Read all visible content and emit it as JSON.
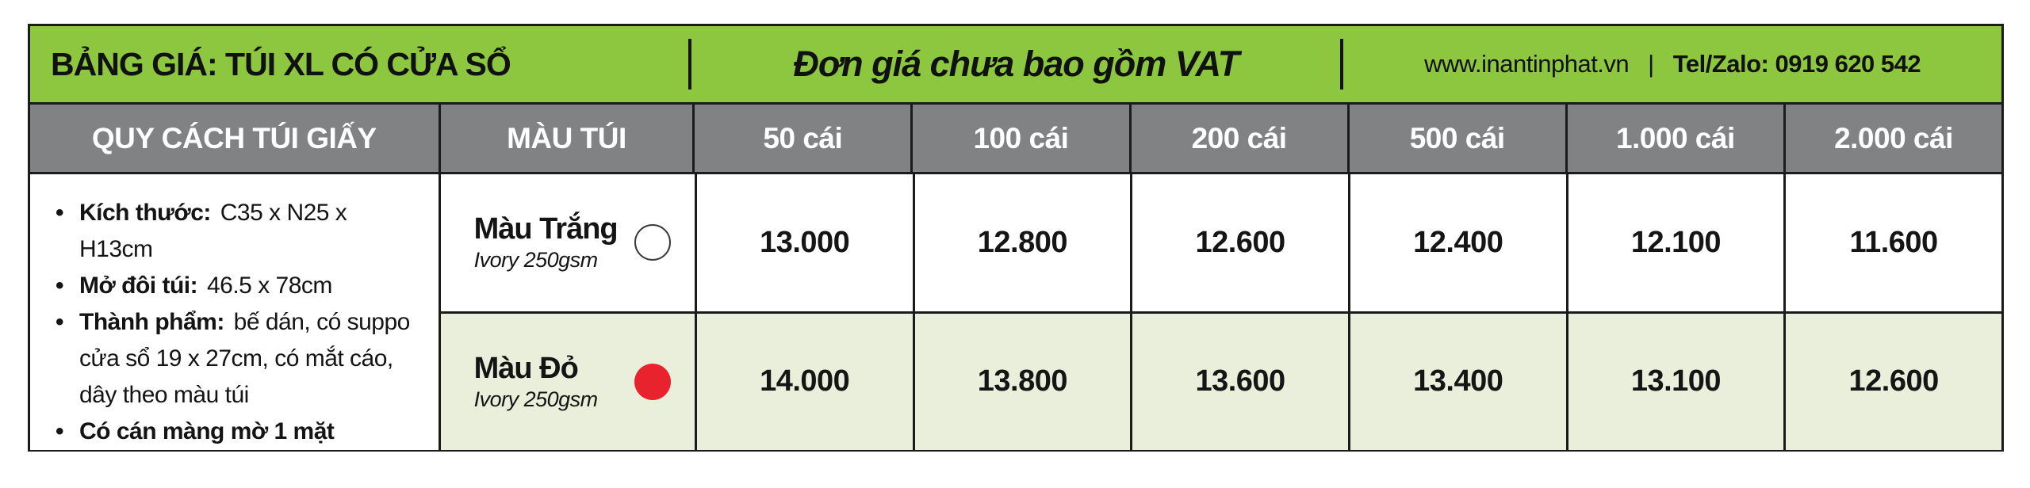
{
  "banner": {
    "title": "BẢNG GIÁ: TÚI XL CÓ CỬA SỔ",
    "note": "Đơn giá chưa bao gồm VAT",
    "website": "www.inantinphat.vn",
    "separator": "|",
    "contact": "Tel/Zalo: 0919 620 542"
  },
  "table": {
    "columns": [
      "QUY CÁCH TÚI GIẤY",
      "MÀU TÚI",
      "50 cái",
      "100 cái",
      "200 cái",
      "500 cái",
      "1.000 cái",
      "2.000 cái"
    ],
    "specs": [
      {
        "label": "Kích thước:",
        "value": "C35 x N25 x H13cm"
      },
      {
        "label": "Mở đôi túi:",
        "value": "46.5 x 78cm"
      },
      {
        "label": "Thành phẩm:",
        "value": "bế dán, có suppo cửa sổ 19 x 27cm, có mắt cáo, dây theo màu túi"
      },
      {
        "label": "Có cán màng mờ 1 mặt",
        "value": ""
      }
    ],
    "rows": [
      {
        "name": "Màu Trắng",
        "material": "Ivory 250gsm",
        "swatch": "white",
        "prices": [
          "13.000",
          "12.800",
          "12.600",
          "12.400",
          "12.100",
          "11.600"
        ]
      },
      {
        "name": "Màu Đỏ",
        "material": "Ivory 250gsm",
        "swatch": "red",
        "prices": [
          "14.000",
          "13.800",
          "13.600",
          "13.400",
          "13.100",
          "12.600"
        ]
      }
    ]
  },
  "colors": {
    "banner_green": "#8dc63f",
    "header_gray": "#808284",
    "row_light_green": "#e9efdb",
    "swatch_red": "#e8232e",
    "swatch_white": "#ffffff",
    "border_black": "#1b1b1b"
  }
}
